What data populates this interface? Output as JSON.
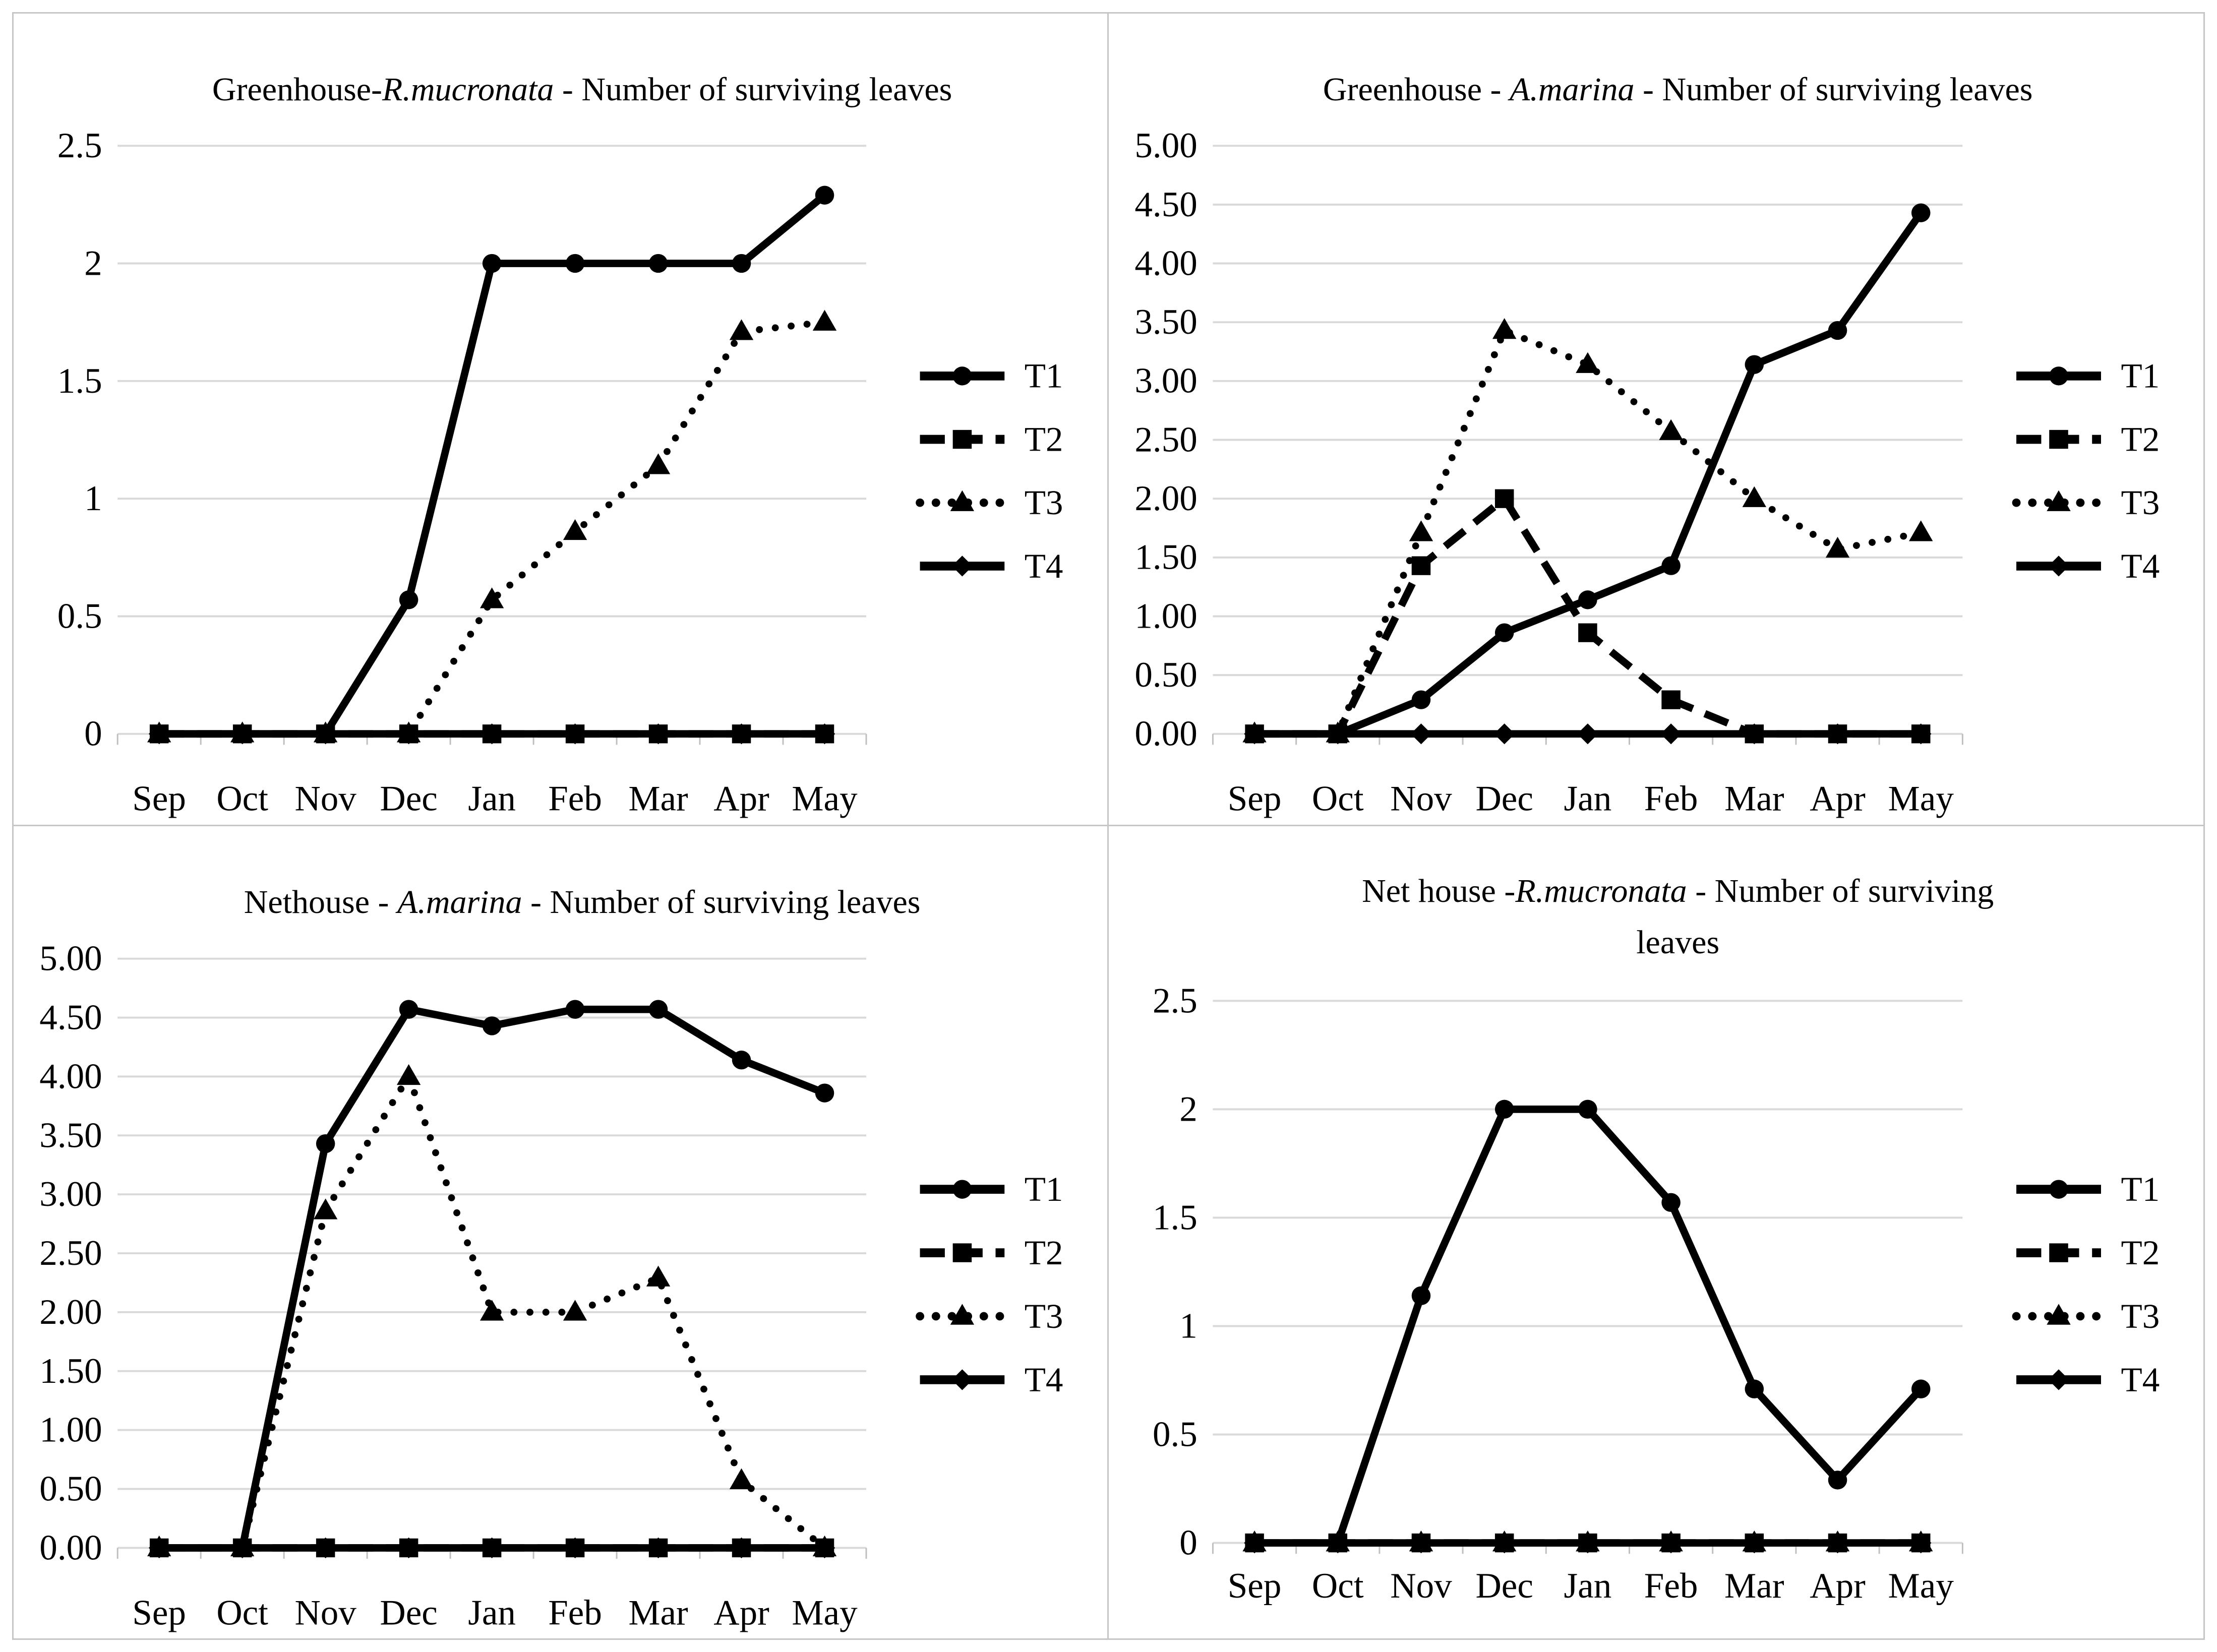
{
  "figure": {
    "background": "#ffffff",
    "border_color": "#c6c6c6",
    "gridline_color": "#d9d9d9",
    "tick_color": "#bfbfbf",
    "series_color": "#000000",
    "text_color": "#000000"
  },
  "legend_labels": [
    "T1",
    "T2",
    "T3",
    "T4"
  ],
  "chart_data": [
    {
      "type": "line",
      "title": {
        "pre": "Greenhouse-",
        "species": "R.mucronata",
        "post": " - Number of surviving leaves",
        "line2": ""
      },
      "xlabel": "",
      "ylabel": "",
      "ylim": [
        0,
        2.5
      ],
      "ytick_labels": [
        "0",
        "0.5",
        "1",
        "1.5",
        "2",
        "2.5"
      ],
      "grid": true,
      "legend_position": "right",
      "categories": [
        "Sep",
        "Oct",
        "Nov",
        "Dec",
        "Jan",
        "Feb",
        "Mar",
        "Apr",
        "May"
      ],
      "series": [
        {
          "name": "T1",
          "line": "solid",
          "marker": "circle",
          "values": [
            0,
            0,
            0,
            0.57,
            2,
            2,
            2,
            2,
            2.29
          ]
        },
        {
          "name": "T2",
          "line": "dashed",
          "marker": "square",
          "values": [
            0,
            0,
            0,
            0,
            0,
            0,
            0,
            0,
            0
          ]
        },
        {
          "name": "T3",
          "line": "dotted",
          "marker": "triangle",
          "values": [
            0,
            0,
            0,
            0,
            0.57,
            0.86,
            1.14,
            1.71,
            1.75
          ]
        },
        {
          "name": "T4",
          "line": "solid",
          "marker": "diamond",
          "values": [
            0,
            0,
            0,
            0,
            0,
            0,
            0,
            0,
            0
          ]
        }
      ]
    },
    {
      "type": "line",
      "title": {
        "pre": "Greenhouse - ",
        "species": "A.marina",
        "post": " - Number of surviving leaves",
        "line2": ""
      },
      "xlabel": "",
      "ylabel": "",
      "ylim": [
        0,
        5
      ],
      "ytick_labels": [
        "0.00",
        "0.50",
        "1.00",
        "1.50",
        "2.00",
        "2.50",
        "3.00",
        "3.50",
        "4.00",
        "4.50",
        "5.00"
      ],
      "grid": true,
      "legend_position": "right",
      "categories": [
        "Sep",
        "Oct",
        "Nov",
        "Dec",
        "Jan",
        "Feb",
        "Mar",
        "Apr",
        "May"
      ],
      "series": [
        {
          "name": "T1",
          "line": "solid",
          "marker": "circle",
          "values": [
            0,
            0,
            0.29,
            0.86,
            1.14,
            1.43,
            3.14,
            3.43,
            4.43
          ]
        },
        {
          "name": "T2",
          "line": "dashed",
          "marker": "square",
          "values": [
            0,
            0,
            1.43,
            2.0,
            0.86,
            0.29,
            0,
            0,
            0
          ]
        },
        {
          "name": "T3",
          "line": "dotted",
          "marker": "triangle",
          "values": [
            0,
            0,
            1.71,
            3.43,
            3.14,
            2.57,
            2.0,
            1.57,
            1.71
          ]
        },
        {
          "name": "T4",
          "line": "solid",
          "marker": "diamond",
          "values": [
            0,
            0,
            0,
            0,
            0,
            0,
            0,
            0,
            0
          ]
        }
      ]
    },
    {
      "type": "line",
      "title": {
        "pre": "Nethouse - ",
        "species": "A.marina",
        "post": " - Number of surviving leaves",
        "line2": ""
      },
      "xlabel": "",
      "ylabel": "",
      "ylim": [
        0,
        5
      ],
      "ytick_labels": [
        "0.00",
        "0.50",
        "1.00",
        "1.50",
        "2.00",
        "2.50",
        "3.00",
        "3.50",
        "4.00",
        "4.50",
        "5.00"
      ],
      "grid": true,
      "legend_position": "right",
      "categories": [
        "Sep",
        "Oct",
        "Nov",
        "Dec",
        "Jan",
        "Feb",
        "Mar",
        "Apr",
        "May"
      ],
      "series": [
        {
          "name": "T1",
          "line": "solid",
          "marker": "circle",
          "values": [
            0,
            0,
            3.43,
            4.57,
            4.43,
            4.57,
            4.57,
            4.14,
            3.86
          ]
        },
        {
          "name": "T2",
          "line": "dashed",
          "marker": "square",
          "values": [
            0,
            0,
            0,
            0,
            0,
            0,
            0,
            0,
            0
          ]
        },
        {
          "name": "T3",
          "line": "dotted",
          "marker": "triangle",
          "values": [
            0,
            0,
            2.86,
            4.0,
            2.0,
            2.0,
            2.29,
            0.57,
            0
          ]
        },
        {
          "name": "T4",
          "line": "solid",
          "marker": "diamond",
          "values": [
            0,
            0,
            0,
            0,
            0,
            0,
            0,
            0,
            0
          ]
        }
      ]
    },
    {
      "type": "line",
      "title": {
        "pre": "Net house -",
        "species": "R.mucronata",
        "post": " - Number of surviving",
        "line2": "leaves"
      },
      "xlabel": "",
      "ylabel": "",
      "ylim": [
        0,
        2.5
      ],
      "ytick_labels": [
        "0",
        "0.5",
        "1",
        "1.5",
        "2",
        "2.5"
      ],
      "grid": true,
      "legend_position": "right",
      "categories": [
        "Sep",
        "Oct",
        "Nov",
        "Dec",
        "Jan",
        "Feb",
        "Mar",
        "Apr",
        "May"
      ],
      "series": [
        {
          "name": "T1",
          "line": "solid",
          "marker": "circle",
          "values": [
            0,
            0,
            1.14,
            2,
            2,
            1.57,
            0.71,
            0.29,
            0.71
          ]
        },
        {
          "name": "T2",
          "line": "dashed",
          "marker": "square",
          "values": [
            0,
            0,
            0,
            0,
            0,
            0,
            0,
            0,
            0
          ]
        },
        {
          "name": "T3",
          "line": "dotted",
          "marker": "triangle",
          "values": [
            0,
            0,
            0,
            0,
            0,
            0,
            0,
            0,
            0
          ]
        },
        {
          "name": "T4",
          "line": "solid",
          "marker": "diamond",
          "values": [
            0,
            0,
            0,
            0,
            0,
            0,
            0,
            0,
            0
          ]
        }
      ]
    }
  ]
}
